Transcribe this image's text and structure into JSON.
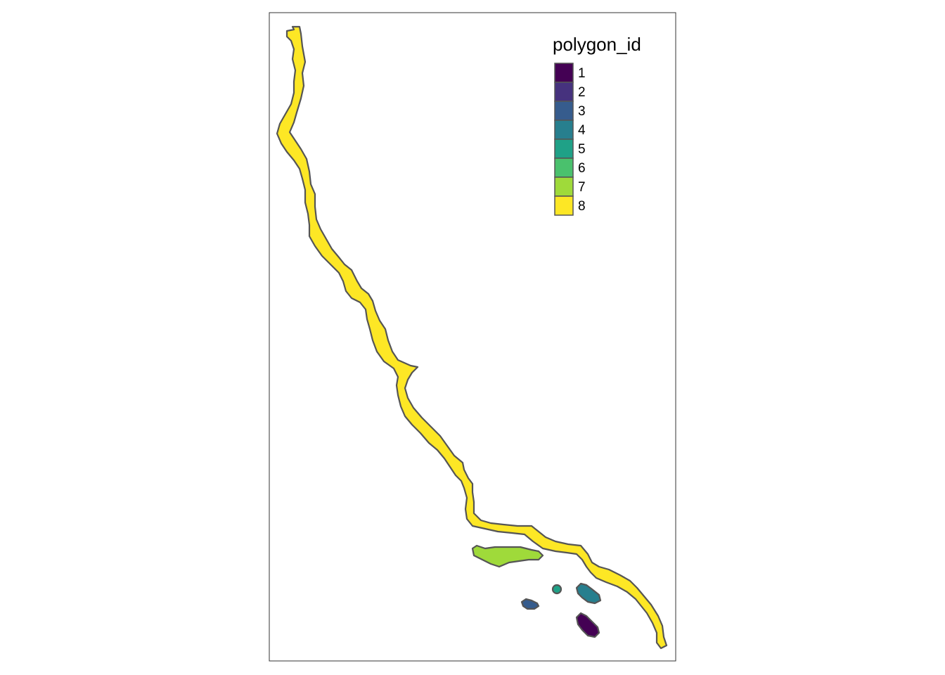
{
  "legend": {
    "title": "polygon_id",
    "entries": [
      {
        "label": "1",
        "color": "#440154"
      },
      {
        "label": "2",
        "color": "#46327E"
      },
      {
        "label": "3",
        "color": "#365C8D"
      },
      {
        "label": "4",
        "color": "#277F8E"
      },
      {
        "label": "5",
        "color": "#1FA187"
      },
      {
        "label": "6",
        "color": "#4AC16D"
      },
      {
        "label": "7",
        "color": "#9FDA3A"
      },
      {
        "label": "8",
        "color": "#FDE725"
      }
    ]
  },
  "polygons": [
    {
      "id": "1",
      "color": "#440154"
    },
    {
      "id": "3",
      "color": "#365C8D"
    },
    {
      "id": "4",
      "color": "#277F8E"
    },
    {
      "id": "5",
      "color": "#1FA187"
    },
    {
      "id": "7",
      "color": "#9FDA3A"
    },
    {
      "id": "8",
      "color": "#FDE725"
    }
  ]
}
